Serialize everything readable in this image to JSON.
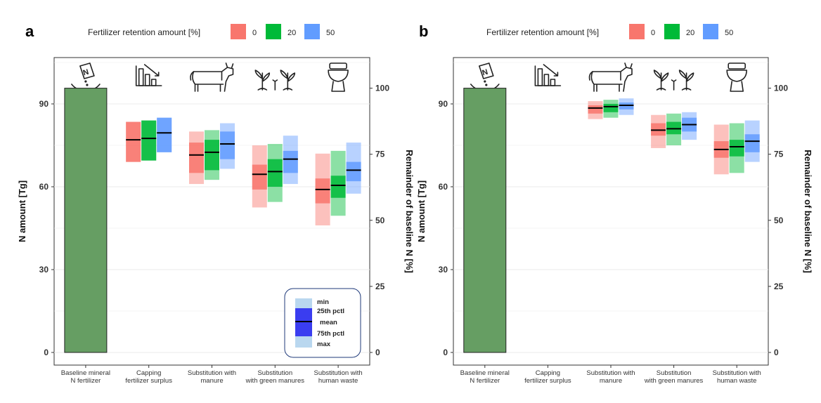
{
  "legend": {
    "title": "Fertilizer retention amount [%]",
    "levels": [
      "0",
      "20",
      "50"
    ],
    "colors": [
      "#f8766d",
      "#00ba38",
      "#619cff"
    ]
  },
  "box_legend": {
    "labels": {
      "min": "min",
      "p25": "25th pctl",
      "mean": "mean",
      "p75": "75th pctl",
      "max": "max"
    }
  },
  "chart_data": [
    {
      "panel_label": "a",
      "type": "bar",
      "categories": [
        "Baseline mineral N fertilizer",
        "Capping fertilizer surplus",
        "Substitution with manure",
        "Substitution with green manures",
        "Substitution with human waste"
      ],
      "category_lines": [
        [
          "Baseline mineral",
          "N fertilizer"
        ],
        [
          "Capping",
          "fertilizer surplus"
        ],
        [
          "Substitution with",
          "manure"
        ],
        [
          "Substitution",
          "with green manures"
        ],
        [
          "Substitution with",
          "human waste"
        ]
      ],
      "category_icons": [
        "fertilizer-bag-icon",
        "bar-decline-icon",
        "cow-icon",
        "green-manure-plants-icon",
        "toilet-icon"
      ],
      "ylabel": "N amount  [Tg]",
      "y2label": "Remainder of baseline N  [%]",
      "ylim": [
        0,
        105
      ],
      "yticks": [
        0,
        30,
        60,
        90
      ],
      "y2ticks": [
        0,
        25,
        50,
        75,
        100
      ],
      "y2_scale": 95.7,
      "baseline": 95.7,
      "series": [
        {
          "name": "0",
          "ranges": [
            null,
            {
              "min": 69,
              "p25": 69,
              "mean": 77,
              "p75": 83.5,
              "max": 83.5
            },
            {
              "min": 61,
              "p25": 65,
              "mean": 71.5,
              "p75": 76,
              "max": 80
            },
            {
              "min": 52.5,
              "p25": 59,
              "mean": 64.5,
              "p75": 68,
              "max": 75
            },
            {
              "min": 46,
              "p25": 54,
              "mean": 59,
              "p75": 63,
              "max": 72
            }
          ]
        },
        {
          "name": "20",
          "ranges": [
            null,
            {
              "min": 69.5,
              "p25": 69.5,
              "mean": 77.5,
              "p75": 84,
              "max": 84
            },
            {
              "min": 62.5,
              "p25": 66,
              "mean": 72.5,
              "p75": 77,
              "max": 80.5
            },
            {
              "min": 54.5,
              "p25": 60,
              "mean": 65.5,
              "p75": 70,
              "max": 75.5
            },
            {
              "min": 49.5,
              "p25": 56,
              "mean": 60.5,
              "p75": 64,
              "max": 73
            }
          ]
        },
        {
          "name": "50",
          "ranges": [
            null,
            {
              "min": 72.5,
              "p25": 72.5,
              "mean": 79.5,
              "p75": 85,
              "max": 85
            },
            {
              "min": 66.5,
              "p25": 70,
              "mean": 75.5,
              "p75": 80,
              "max": 83
            },
            {
              "min": 61,
              "p25": 65,
              "mean": 70,
              "p75": 73,
              "max": 78.5
            },
            {
              "min": 57.5,
              "p25": 62,
              "mean": 66,
              "p75": 69,
              "max": 76
            }
          ]
        }
      ]
    },
    {
      "panel_label": "b",
      "type": "bar",
      "categories": [
        "Baseline mineral N fertilizer",
        "Capping fertilizer surplus",
        "Substitution with manure",
        "Substitution with green manures",
        "Substitution with human waste"
      ],
      "category_lines": [
        [
          "Baseline mineral",
          "N fertilizer"
        ],
        [
          "Capping",
          "fertilizer surplus"
        ],
        [
          "Substitution with",
          "manure"
        ],
        [
          "Substitution",
          "with green manures"
        ],
        [
          "Substitution with",
          "human waste"
        ]
      ],
      "category_icons": [
        "fertilizer-bag-icon",
        "bar-decline-icon",
        "cow-icon",
        "green-manure-plants-icon",
        "toilet-icon"
      ],
      "ylabel": "N amount  [Tg]",
      "y2label": "Remainder of baseline N  [%]",
      "ylim": [
        0,
        105
      ],
      "yticks": [
        0,
        30,
        60,
        90
      ],
      "y2ticks": [
        0,
        25,
        50,
        75,
        100
      ],
      "y2_scale": 95.7,
      "baseline": 95.7,
      "series": [
        {
          "name": "0",
          "ranges": [
            null,
            null,
            {
              "min": 84.5,
              "p25": 86.5,
              "mean": 88.5,
              "p75": 89.5,
              "max": 91
            },
            {
              "min": 74,
              "p25": 78.5,
              "mean": 80.5,
              "p75": 83,
              "max": 86
            },
            {
              "min": 64.5,
              "p25": 70.5,
              "mean": 73.5,
              "p75": 76.5,
              "max": 82.5
            }
          ]
        },
        {
          "name": "20",
          "ranges": [
            null,
            null,
            {
              "min": 85,
              "p25": 87,
              "mean": 89,
              "p75": 90,
              "max": 91.5
            },
            {
              "min": 75,
              "p25": 79,
              "mean": 81,
              "p75": 83.5,
              "max": 86.5
            },
            {
              "min": 65,
              "p25": 71,
              "mean": 74.5,
              "p75": 77,
              "max": 83
            }
          ]
        },
        {
          "name": "50",
          "ranges": [
            null,
            null,
            {
              "min": 86,
              "p25": 88,
              "mean": 89.5,
              "p75": 90.5,
              "max": 92
            },
            {
              "min": 77,
              "p25": 80,
              "mean": 82.5,
              "p75": 85,
              "max": 87
            },
            {
              "min": 69,
              "p25": 72.5,
              "mean": 76.5,
              "p75": 79,
              "max": 84
            }
          ]
        }
      ]
    }
  ]
}
